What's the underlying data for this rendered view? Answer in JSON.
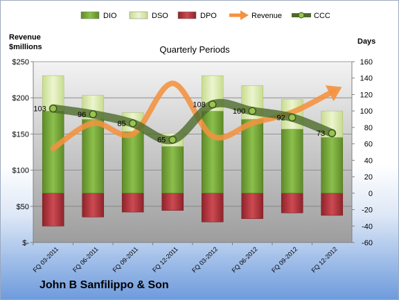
{
  "chart_data": {
    "type": "bar",
    "title": "Quarterly Periods",
    "company": "John B Sanfilippo & Son",
    "y_left_label": [
      "Revenue",
      "$millions"
    ],
    "y_right_label": "Days",
    "y_left_ticks": [
      "$-",
      "$50",
      "$100",
      "$150",
      "$200",
      "$250"
    ],
    "y_left_lim": [
      0,
      250
    ],
    "y_right_ticks": [
      "-60",
      "-40",
      "-20",
      "0",
      "20",
      "40",
      "60",
      "80",
      "100",
      "120",
      "140",
      "160"
    ],
    "y_right_lim": [
      -60,
      160
    ],
    "grid": true,
    "legend_position": "top",
    "legend": [
      "DIO",
      "DSO",
      "DPO",
      "Revenue",
      "CCC"
    ],
    "categories": [
      "FQ 03-2011",
      "FQ 06-2011",
      "FQ 09-2011",
      "FQ 12-2011",
      "FQ 03-2012",
      "FQ 06-2012",
      "FQ 09-2012",
      "FQ 12-2012"
    ],
    "series": [
      {
        "name": "DIO",
        "axis": "right",
        "color": "#77a33a",
        "values": [
          100,
          90,
          75,
          57,
          100,
          90,
          78,
          68
        ]
      },
      {
        "name": "DSO",
        "axis": "right",
        "color": "#d7e6a9",
        "values": [
          43,
          29,
          23,
          16,
          43,
          41,
          36,
          32
        ]
      },
      {
        "name": "DPO",
        "axis": "right",
        "color": "#b9373f",
        "values": [
          -40,
          -29,
          -23,
          -21,
          -35,
          -31,
          -24,
          -27
        ]
      },
      {
        "name": "Revenue",
        "axis": "left",
        "color": "#f4923f",
        "values": [
          130,
          165,
          150,
          220,
          147,
          165,
          180,
          208
        ]
      },
      {
        "name": "CCC",
        "axis": "right",
        "color": "#4e6b2b",
        "values": [
          103,
          96,
          85,
          65,
          108,
          100,
          92,
          73
        ]
      }
    ],
    "ccc_labels": [
      "103",
      "96",
      "85",
      "65",
      "108",
      "100",
      "92",
      "73"
    ]
  }
}
